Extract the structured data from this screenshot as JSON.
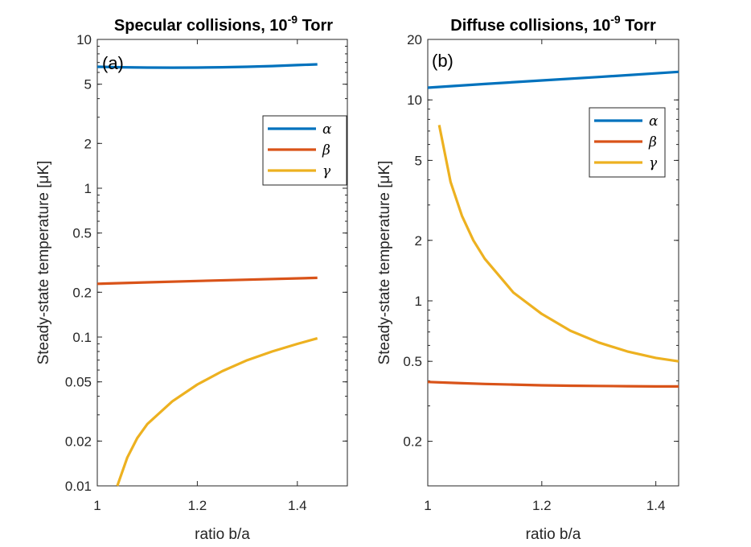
{
  "chart_data": [
    {
      "type": "line",
      "panel_label": "(a)",
      "title_main": "Specular collisions, 10",
      "title_exp": "-9",
      "title_tail": " Torr",
      "xlabel": "ratio b/a",
      "ylabel": "Steady-state temperature [μK]",
      "yscale": "log",
      "xlim": [
        1,
        1.5
      ],
      "ylim": [
        0.01,
        10
      ],
      "xticks": [
        1,
        1.2,
        1.4
      ],
      "xtick_labels": [
        "1",
        "1.2",
        "1.4"
      ],
      "yticks": [
        0.01,
        0.02,
        0.05,
        0.1,
        0.2,
        0.5,
        1,
        2,
        5,
        10
      ],
      "ytick_labels": [
        "0.01",
        "0.02",
        "0.05",
        "0.1",
        "0.2",
        "0.5",
        "1",
        "2",
        "5",
        "10"
      ],
      "legend_position": "right",
      "series": [
        {
          "name": "α",
          "color": "#0072BD",
          "x": [
            1,
            1.05,
            1.1,
            1.15,
            1.2,
            1.25,
            1.3,
            1.35,
            1.4,
            1.44
          ],
          "y": [
            6.55,
            6.5,
            6.47,
            6.46,
            6.47,
            6.5,
            6.55,
            6.62,
            6.72,
            6.8
          ]
        },
        {
          "name": "β",
          "color": "#D95319",
          "x": [
            1,
            1.1,
            1.2,
            1.3,
            1.44
          ],
          "y": [
            0.228,
            0.233,
            0.238,
            0.243,
            0.25
          ]
        },
        {
          "name": "γ",
          "color": "#EDB120",
          "x": [
            1.04,
            1.06,
            1.08,
            1.1,
            1.15,
            1.2,
            1.25,
            1.3,
            1.35,
            1.4,
            1.44
          ],
          "y": [
            0.01,
            0.0155,
            0.021,
            0.026,
            0.037,
            0.048,
            0.059,
            0.07,
            0.08,
            0.09,
            0.098
          ]
        }
      ]
    },
    {
      "type": "line",
      "panel_label": "(b)",
      "title_main": "Diffuse collisions, 10",
      "title_exp": "-9",
      "title_tail": " Torr",
      "xlabel": "ratio b/a",
      "ylabel": "Steady-state temperature [μK]",
      "yscale": "log",
      "xlim": [
        1,
        1.44
      ],
      "ylim": [
        0.12,
        20
      ],
      "xticks": [
        1,
        1.2,
        1.4
      ],
      "xtick_labels": [
        "1",
        "1.2",
        "1.4"
      ],
      "yticks": [
        0.2,
        0.5,
        1,
        2,
        5,
        10,
        20
      ],
      "ytick_labels": [
        "0.2",
        "0.5",
        "1",
        "2",
        "5",
        "10",
        "20"
      ],
      "legend_position": "top-right",
      "series": [
        {
          "name": "α",
          "color": "#0072BD",
          "x": [
            1,
            1.1,
            1.2,
            1.3,
            1.44
          ],
          "y": [
            11.5,
            12.0,
            12.5,
            13.0,
            13.8
          ]
        },
        {
          "name": "β",
          "color": "#D95319",
          "x": [
            1,
            1.05,
            1.1,
            1.15,
            1.2,
            1.25,
            1.3,
            1.35,
            1.4,
            1.44
          ],
          "y": [
            0.395,
            0.39,
            0.386,
            0.383,
            0.38,
            0.378,
            0.377,
            0.376,
            0.375,
            0.375
          ]
        },
        {
          "name": "γ",
          "color": "#EDB120",
          "x": [
            1.02,
            1.04,
            1.06,
            1.08,
            1.1,
            1.15,
            1.2,
            1.25,
            1.3,
            1.35,
            1.4,
            1.44
          ],
          "y": [
            7.5,
            3.9,
            2.65,
            2.0,
            1.62,
            1.1,
            0.86,
            0.71,
            0.62,
            0.56,
            0.52,
            0.5
          ]
        }
      ]
    }
  ]
}
